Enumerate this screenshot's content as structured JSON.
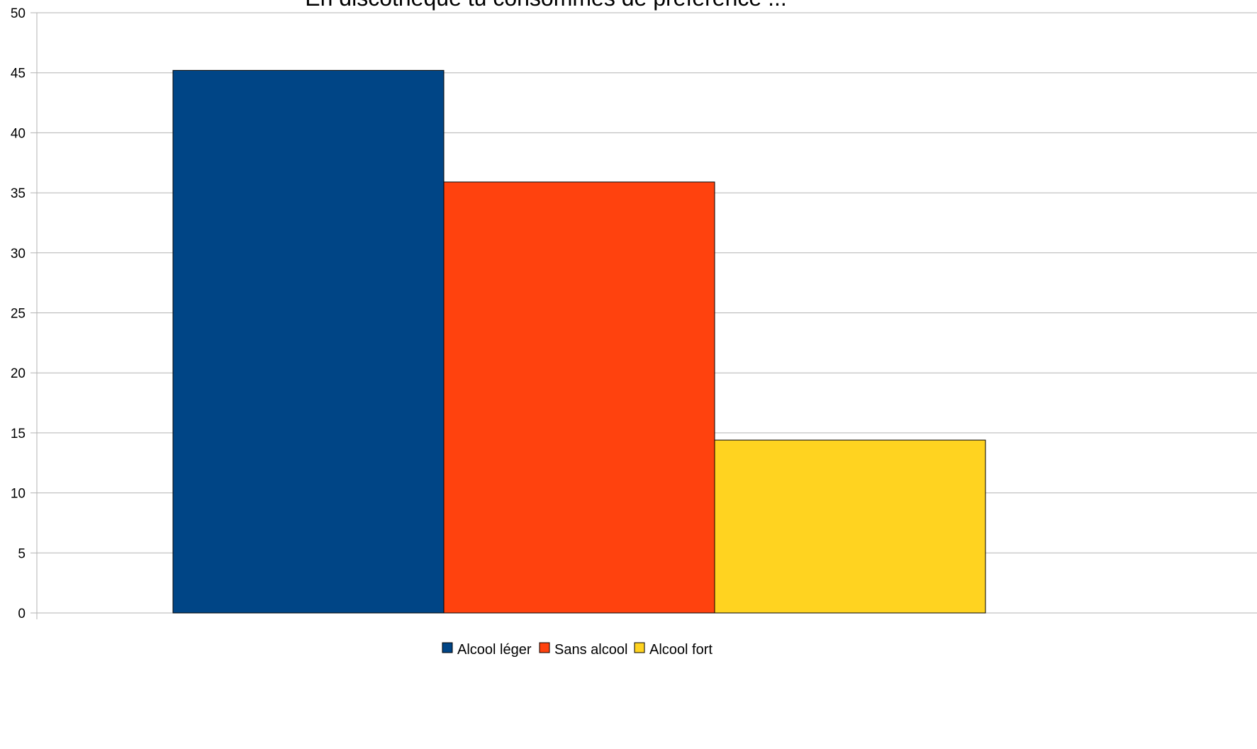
{
  "chart_data": {
    "type": "bar",
    "title": "En discothèque tu consommes de préférence ...",
    "xlabel": "",
    "ylabel": "",
    "ylim": [
      0,
      50
    ],
    "yticks": [
      0,
      5,
      10,
      15,
      20,
      25,
      30,
      35,
      40,
      45,
      50
    ],
    "grid": true,
    "legend_position": "bottom",
    "categories": [
      ""
    ],
    "series": [
      {
        "name": "Alcool léger",
        "values": [
          45.2
        ],
        "color": "#004586"
      },
      {
        "name": "Sans alcool",
        "values": [
          35.9
        ],
        "color": "#ff420e"
      },
      {
        "name": "Alcool fort",
        "values": [
          14.4
        ],
        "color": "#ffd320"
      }
    ]
  }
}
